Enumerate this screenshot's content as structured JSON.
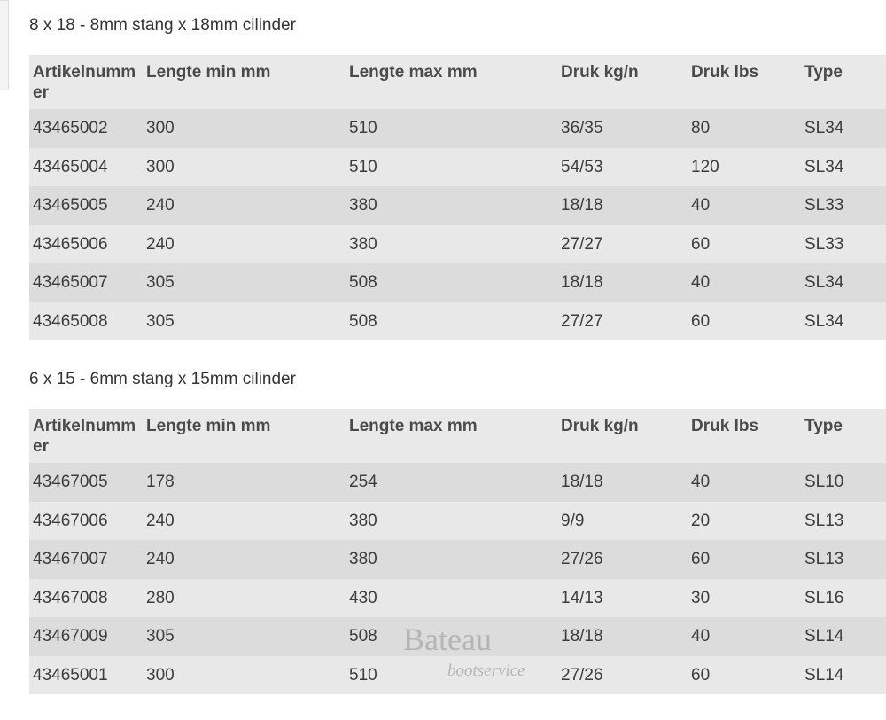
{
  "columns": [
    "Artikelnummer",
    "Lengte min mm",
    "Lengte max mm",
    "Druk kg/n",
    "Druk lbs",
    "Type"
  ],
  "sections": [
    {
      "title": "8 x 18 - 8mm stang x 18mm cilinder",
      "rows": [
        [
          "43465002",
          "300",
          "510",
          "36/35",
          "80",
          "SL34"
        ],
        [
          "43465004",
          "300",
          "510",
          "54/53",
          "120",
          "SL34"
        ],
        [
          "43465005",
          "240",
          "380",
          "18/18",
          "40",
          "SL33"
        ],
        [
          "43465006",
          "240",
          "380",
          "27/27",
          "60",
          "SL33"
        ],
        [
          "43465007",
          "305",
          "508",
          "18/18",
          "40",
          "SL34"
        ],
        [
          "43465008",
          "305",
          "508",
          "27/27",
          "60",
          "SL34"
        ]
      ]
    },
    {
      "title": "6 x 15 - 6mm stang x 15mm cilinder",
      "rows": [
        [
          "43467005",
          "178",
          "254",
          "18/18",
          "40",
          "SL10"
        ],
        [
          "43467006",
          "240",
          "380",
          "9/9",
          "20",
          "SL13"
        ],
        [
          "43467007",
          "240",
          "380",
          "27/26",
          "60",
          "SL13"
        ],
        [
          "43467008",
          "280",
          "430",
          "14/13",
          "30",
          "SL16"
        ],
        [
          "43467009",
          "305",
          "508",
          "18/18",
          "40",
          "SL14"
        ],
        [
          "43465001",
          "300",
          "510",
          "27/26",
          "60",
          "SL14"
        ]
      ]
    }
  ],
  "watermark": {
    "brand": "Bateau",
    "sub": "bootservice"
  }
}
